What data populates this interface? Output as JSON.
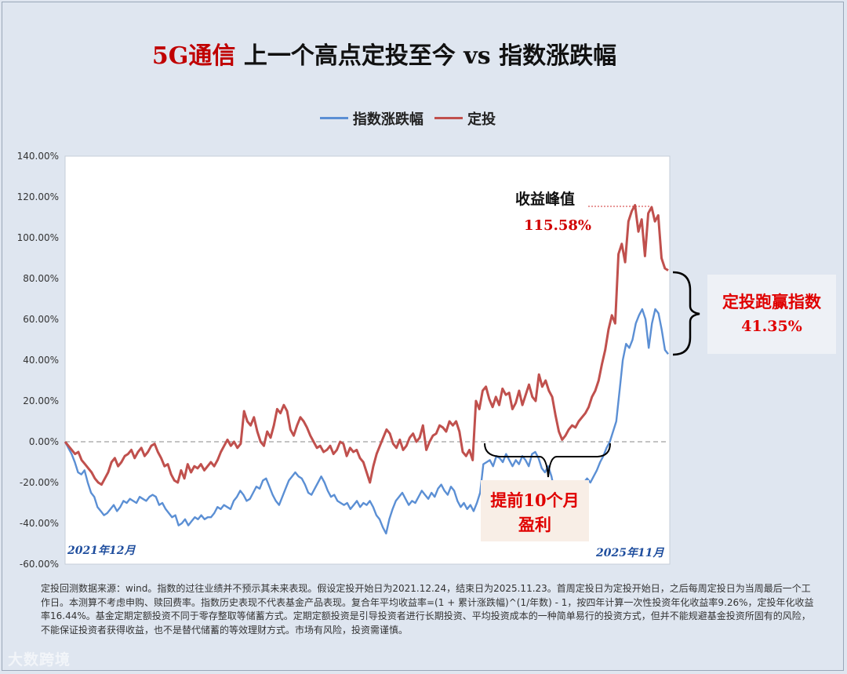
{
  "title": {
    "accent": "5G通信",
    "rest": " 上一个高点定投至今 vs 指数涨跌幅"
  },
  "colors": {
    "index": "#5b8fd4",
    "dca": "#c0504d",
    "accent": "#c00000"
  },
  "chart_data": {
    "type": "line",
    "ylim": [
      -60,
      140
    ],
    "yticks": [
      "140.00%",
      "120.00%",
      "100.00%",
      "80.00%",
      "60.00%",
      "40.00%",
      "20.00%",
      "0.00%",
      "-20.00%",
      "-40.00%",
      "-60.00%"
    ],
    "x_start_label": "2021年12月",
    "x_end_label": "2025年11月",
    "series": [
      {
        "name": "指数涨跌幅",
        "values": [
          0,
          -3,
          -6,
          -10,
          -15,
          -16,
          -14,
          -20,
          -25,
          -27,
          -32,
          -34,
          -36,
          -35,
          -33,
          -31,
          -34,
          -32,
          -29,
          -30,
          -28,
          -29,
          -30,
          -27,
          -28,
          -29,
          -27,
          -26,
          -27,
          -31,
          -30,
          -33,
          -35,
          -37,
          -36,
          -41,
          -40,
          -38,
          -41,
          -39,
          -37,
          -38,
          -36,
          -38,
          -37,
          -37,
          -35,
          -32,
          -33,
          -31,
          -32,
          -33,
          -29,
          -27,
          -24,
          -26,
          -29,
          -28,
          -25,
          -22,
          -23,
          -19,
          -18,
          -22,
          -26,
          -29,
          -31,
          -27,
          -23,
          -19,
          -17,
          -15,
          -17,
          -18,
          -21,
          -25,
          -26,
          -23,
          -20,
          -17,
          -20,
          -24,
          -27,
          -26,
          -29,
          -30,
          -31,
          -30,
          -33,
          -31,
          -29,
          -32,
          -30,
          -31,
          -29,
          -32,
          -36,
          -38,
          -42,
          -45,
          -38,
          -33,
          -29,
          -27,
          -25,
          -28,
          -31,
          -29,
          -30,
          -27,
          -24,
          -26,
          -28,
          -25,
          -27,
          -23,
          -21,
          -24,
          -26,
          -22,
          -24,
          -29,
          -32,
          -30,
          -33,
          -31,
          -34,
          -30,
          -25,
          -11,
          -10,
          -9,
          -12,
          -7,
          -8,
          -10,
          -6,
          -9,
          -12,
          -9,
          -11,
          -7,
          -9,
          -12,
          -6,
          -5,
          -8,
          -13,
          -15,
          -12,
          -17,
          -25,
          -27,
          -28,
          -26,
          -24,
          -22,
          -24,
          -22,
          -22,
          -20,
          -18,
          -20,
          -17,
          -14,
          -10,
          -7,
          -3,
          0,
          5,
          10,
          25,
          40,
          48,
          46,
          50,
          58,
          62,
          65,
          60,
          46,
          58,
          65,
          63,
          55,
          45,
          43
        ],
        "color": "#5b8fd4"
      },
      {
        "name": "定投",
        "values": [
          0,
          -2,
          -4,
          -6,
          -5,
          -9,
          -11,
          -13,
          -15,
          -18,
          -20,
          -21,
          -18,
          -15,
          -10,
          -8,
          -12,
          -10,
          -7,
          -6,
          -4,
          -8,
          -5,
          -3,
          -7,
          -5,
          -2,
          -1,
          -5,
          -8,
          -12,
          -11,
          -16,
          -19,
          -20,
          -14,
          -18,
          -11,
          -15,
          -12,
          -13,
          -11,
          -14,
          -12,
          -10,
          -12,
          -9,
          -5,
          -2,
          1,
          -2,
          0,
          -3,
          -1,
          15,
          10,
          8,
          12,
          5,
          0,
          -2,
          5,
          2,
          8,
          16,
          14,
          18,
          15,
          6,
          3,
          8,
          12,
          10,
          7,
          3,
          0,
          -3,
          -2,
          -5,
          -4,
          -2,
          -6,
          -4,
          0,
          -1,
          -7,
          -3,
          -5,
          -4,
          -8,
          -10,
          -15,
          -20,
          -12,
          -6,
          -2,
          2,
          6,
          4,
          -1,
          -3,
          1,
          -4,
          -2,
          2,
          4,
          0,
          2,
          8,
          -4,
          0,
          3,
          4,
          8,
          7,
          5,
          10,
          8,
          10,
          5,
          -5,
          -7,
          -4,
          -9,
          20,
          16,
          25,
          27,
          21,
          17,
          22,
          18,
          26,
          23,
          24,
          16,
          19,
          25,
          18,
          23,
          28,
          22,
          20,
          33,
          27,
          30,
          25,
          22,
          13,
          5,
          1,
          3,
          6,
          8,
          7,
          10,
          12,
          14,
          17,
          22,
          25,
          30,
          38,
          45,
          55,
          62,
          58,
          92,
          97,
          88,
          108,
          113,
          116,
          103,
          109,
          91,
          112,
          115,
          108,
          111,
          90,
          85,
          84
        ],
        "color": "#c0504d"
      }
    ]
  },
  "annotations": {
    "peak_title": "收益峰值",
    "peak_value": "115.58%",
    "beat_line1": "定投跑赢指数",
    "beat_line2": "41.35%",
    "early_line1": "提前10个月",
    "early_line2": "盈利"
  },
  "footnote": "定投回测数据来源：wind。指数的过往业绩并不预示其未来表现。假设定投开始日为2021.12.24，结束日为2025.11.23。首周定投日为定投开始日，之后每周定投日为当周最后一个工作日。本测算不考虑申购、赎回费率。指数历史表现不代表基金产品表现。复合年平均收益率=(1 + 累计涨跌幅)^(1/年数) - 1，按四年计算一次性投资年化收益率9.26%，定投年化收益率16.44%。基金定期定额投资不同于零存整取等储蓄方式。定期定额投资是引导投资者进行长期投资、平均投资成本的一种简单易行的投资方式，但并不能规避基金投资所固有的风险，不能保证投资者获得收益，也不是替代储蓄的等效理财方式。市场有风险，投资需谨慎。",
  "watermark": "大数跨境"
}
